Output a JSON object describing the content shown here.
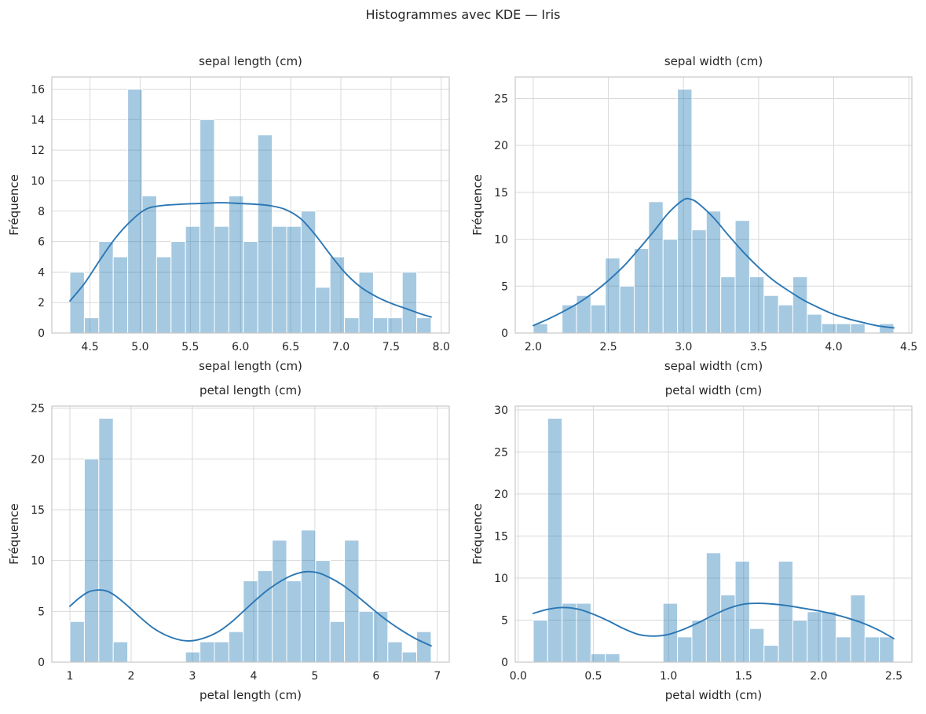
{
  "figure": {
    "title": "Histogrammes avec KDE — Iris"
  },
  "colors": {
    "background": "#ffffff",
    "bar_fill": "rgba(31,119,180,0.4)",
    "bar_edge": "#ffffff",
    "kde_line": "#2b77b4",
    "grid": "#d9d9d9",
    "spine": "#c9c9c9",
    "text": "#262626"
  },
  "chart_data": [
    {
      "type": "bar",
      "title": "sepal length (cm)",
      "xlabel": "sepal length (cm)",
      "ylabel": "Fréquence",
      "bin_start": 4.3,
      "bin_width": 0.144,
      "values": [
        4,
        1,
        6,
        5,
        16,
        9,
        5,
        6,
        7,
        14,
        7,
        9,
        6,
        13,
        7,
        7,
        8,
        3,
        5,
        1,
        4,
        1,
        1,
        4,
        1
      ],
      "xlim": [
        4.12,
        8.08
      ],
      "ylim": [
        0,
        16.8
      ],
      "xticks": [
        4.5,
        5.0,
        5.5,
        6.0,
        6.5,
        7.0,
        7.5,
        8.0
      ],
      "xtick_labels": [
        "4.5",
        "5.0",
        "5.5",
        "6.0",
        "6.5",
        "7.0",
        "7.5",
        "8.0"
      ],
      "yticks": [
        0,
        2,
        4,
        6,
        8,
        10,
        12,
        14,
        16
      ],
      "ytick_labels": [
        "0",
        "2",
        "4",
        "6",
        "8",
        "10",
        "12",
        "14",
        "16"
      ],
      "grid": true,
      "legend": null,
      "kde": [
        [
          4.3,
          2.1
        ],
        [
          4.45,
          3.3
        ],
        [
          4.6,
          4.8
        ],
        [
          4.75,
          6.2
        ],
        [
          4.9,
          7.3
        ],
        [
          5.05,
          8.1
        ],
        [
          5.2,
          8.35
        ],
        [
          5.4,
          8.45
        ],
        [
          5.6,
          8.5
        ],
        [
          5.8,
          8.55
        ],
        [
          6.0,
          8.5
        ],
        [
          6.15,
          8.45
        ],
        [
          6.3,
          8.35
        ],
        [
          6.45,
          8.1
        ],
        [
          6.6,
          7.5
        ],
        [
          6.75,
          6.4
        ],
        [
          6.9,
          5.1
        ],
        [
          7.05,
          3.9
        ],
        [
          7.2,
          3.0
        ],
        [
          7.35,
          2.4
        ],
        [
          7.5,
          1.95
        ],
        [
          7.65,
          1.6
        ],
        [
          7.8,
          1.25
        ],
        [
          7.9,
          1.05
        ]
      ]
    },
    {
      "type": "bar",
      "title": "sepal width (cm)",
      "xlabel": "sepal width (cm)",
      "ylabel": "Fréquence",
      "bin_start": 2.0,
      "bin_width": 0.096,
      "values": [
        1,
        0,
        3,
        4,
        3,
        8,
        5,
        9,
        14,
        10,
        26,
        11,
        13,
        6,
        12,
        6,
        4,
        3,
        6,
        2,
        1,
        1,
        1,
        0,
        1
      ],
      "xlim": [
        1.88,
        4.52
      ],
      "ylim": [
        0,
        27.3
      ],
      "xticks": [
        2.0,
        2.5,
        3.0,
        3.5,
        4.0,
        4.5
      ],
      "xtick_labels": [
        "2.0",
        "2.5",
        "3.0",
        "3.5",
        "4.0",
        "4.5"
      ],
      "yticks": [
        0,
        5,
        10,
        15,
        20,
        25
      ],
      "ytick_labels": [
        "0",
        "5",
        "10",
        "15",
        "20",
        "25"
      ],
      "grid": true,
      "legend": null,
      "kde": [
        [
          2.0,
          0.8
        ],
        [
          2.1,
          1.5
        ],
        [
          2.2,
          2.3
        ],
        [
          2.3,
          3.2
        ],
        [
          2.4,
          4.3
        ],
        [
          2.5,
          5.6
        ],
        [
          2.6,
          7.1
        ],
        [
          2.7,
          8.9
        ],
        [
          2.8,
          10.8
        ],
        [
          2.9,
          12.8
        ],
        [
          3.0,
          14.2
        ],
        [
          3.05,
          14.25
        ],
        [
          3.1,
          13.8
        ],
        [
          3.2,
          12.3
        ],
        [
          3.3,
          10.4
        ],
        [
          3.4,
          8.6
        ],
        [
          3.5,
          7.0
        ],
        [
          3.6,
          5.6
        ],
        [
          3.7,
          4.5
        ],
        [
          3.8,
          3.5
        ],
        [
          3.9,
          2.7
        ],
        [
          4.0,
          2.0
        ],
        [
          4.1,
          1.5
        ],
        [
          4.2,
          1.1
        ],
        [
          4.3,
          0.75
        ],
        [
          4.4,
          0.55
        ]
      ]
    },
    {
      "type": "bar",
      "title": "petal length (cm)",
      "xlabel": "petal length (cm)",
      "ylabel": "Fréquence",
      "bin_start": 1.0,
      "bin_width": 0.236,
      "values": [
        4,
        20,
        24,
        2,
        0,
        0,
        0,
        0,
        1,
        2,
        2,
        3,
        8,
        9,
        12,
        8,
        13,
        10,
        4,
        12,
        5,
        5,
        2,
        1,
        3
      ],
      "xlim": [
        0.705,
        7.195
      ],
      "ylim": [
        0,
        25.2
      ],
      "xticks": [
        1,
        2,
        3,
        4,
        5,
        6,
        7
      ],
      "xtick_labels": [
        "1",
        "2",
        "3",
        "4",
        "5",
        "6",
        "7"
      ],
      "yticks": [
        0,
        5,
        10,
        15,
        20,
        25
      ],
      "ytick_labels": [
        "0",
        "5",
        "10",
        "15",
        "20",
        "25"
      ],
      "grid": true,
      "legend": null,
      "kde": [
        [
          1.0,
          5.5
        ],
        [
          1.15,
          6.3
        ],
        [
          1.3,
          6.9
        ],
        [
          1.45,
          7.1
        ],
        [
          1.6,
          7.0
        ],
        [
          1.75,
          6.5
        ],
        [
          1.95,
          5.5
        ],
        [
          2.15,
          4.4
        ],
        [
          2.35,
          3.4
        ],
        [
          2.55,
          2.7
        ],
        [
          2.75,
          2.25
        ],
        [
          2.9,
          2.1
        ],
        [
          3.05,
          2.15
        ],
        [
          3.25,
          2.5
        ],
        [
          3.45,
          3.1
        ],
        [
          3.65,
          4.0
        ],
        [
          3.85,
          5.1
        ],
        [
          4.05,
          6.2
        ],
        [
          4.25,
          7.2
        ],
        [
          4.45,
          8.0
        ],
        [
          4.65,
          8.6
        ],
        [
          4.85,
          8.9
        ],
        [
          5.05,
          8.8
        ],
        [
          5.25,
          8.3
        ],
        [
          5.45,
          7.6
        ],
        [
          5.65,
          6.7
        ],
        [
          5.85,
          5.7
        ],
        [
          6.05,
          4.7
        ],
        [
          6.25,
          3.8
        ],
        [
          6.45,
          3.0
        ],
        [
          6.65,
          2.3
        ],
        [
          6.9,
          1.6
        ]
      ]
    },
    {
      "type": "bar",
      "title": "petal width (cm)",
      "xlabel": "petal width (cm)",
      "ylabel": "Fréquence",
      "bin_start": 0.1,
      "bin_width": 0.096,
      "values": [
        5,
        29,
        7,
        7,
        1,
        1,
        0,
        0,
        0,
        7,
        3,
        5,
        13,
        8,
        12,
        4,
        2,
        12,
        5,
        6,
        6,
        3,
        8,
        3,
        3
      ],
      "xlim": [
        -0.02,
        2.62
      ],
      "ylim": [
        0,
        30.45
      ],
      "xticks": [
        0.0,
        0.5,
        1.0,
        1.5,
        2.0,
        2.5
      ],
      "xtick_labels": [
        "0.0",
        "0.5",
        "1.0",
        "1.5",
        "2.0",
        "2.5"
      ],
      "yticks": [
        0,
        5,
        10,
        15,
        20,
        25,
        30
      ],
      "ytick_labels": [
        "0",
        "5",
        "10",
        "15",
        "20",
        "25",
        "30"
      ],
      "grid": true,
      "legend": null,
      "kde": [
        [
          0.1,
          5.8
        ],
        [
          0.2,
          6.3
        ],
        [
          0.3,
          6.5
        ],
        [
          0.4,
          6.3
        ],
        [
          0.5,
          5.7
        ],
        [
          0.6,
          4.9
        ],
        [
          0.7,
          4.0
        ],
        [
          0.8,
          3.3
        ],
        [
          0.9,
          3.1
        ],
        [
          1.0,
          3.3
        ],
        [
          1.1,
          3.9
        ],
        [
          1.2,
          4.7
        ],
        [
          1.3,
          5.6
        ],
        [
          1.4,
          6.4
        ],
        [
          1.5,
          6.9
        ],
        [
          1.6,
          7.0
        ],
        [
          1.7,
          6.9
        ],
        [
          1.8,
          6.7
        ],
        [
          1.9,
          6.4
        ],
        [
          2.0,
          6.1
        ],
        [
          2.1,
          5.7
        ],
        [
          2.2,
          5.2
        ],
        [
          2.3,
          4.6
        ],
        [
          2.4,
          3.8
        ],
        [
          2.5,
          2.8
        ]
      ]
    }
  ]
}
